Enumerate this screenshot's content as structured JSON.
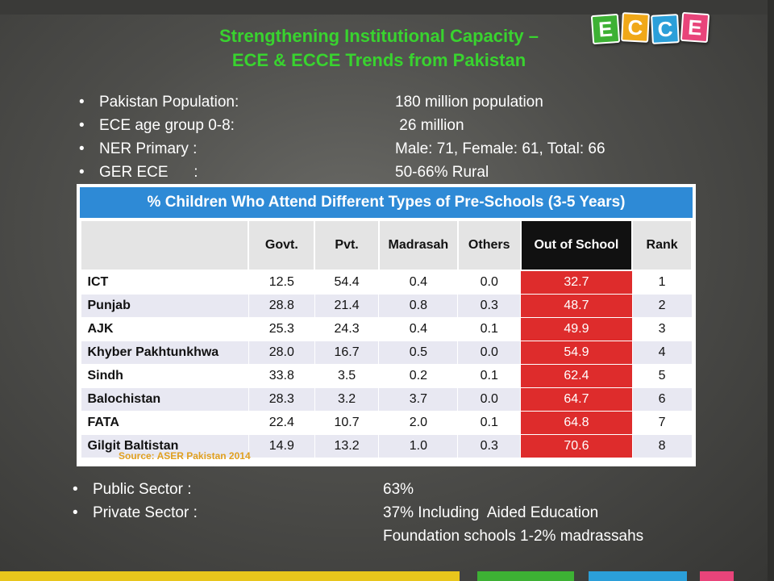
{
  "header": {
    "title_line1": "Strengthening Institutional Capacity –",
    "title_line2": "ECE & ECCE Trends from Pakistan",
    "logo_letters": [
      "E",
      "C",
      "C",
      "E"
    ],
    "logo_colors": [
      "#3db134",
      "#f0a818",
      "#2b9fd9",
      "#e8447a"
    ]
  },
  "stats": [
    {
      "label": "Pakistan Population:",
      "value": "180 million population"
    },
    {
      "label": "ECE age group 0-8:",
      "value": " 26 million"
    },
    {
      "label": "NER Primary :",
      "value": "Male: 71, Female: 61, Total: 66"
    },
    {
      "label": "GER ECE      :",
      "value": "50-66% Rural"
    }
  ],
  "table": {
    "title": "% Children Who Attend Different Types of Pre-Schools (3-5 Years)",
    "columns": [
      "",
      "Govt.",
      "Pvt.",
      "Madrasah",
      "Others",
      "Out of School",
      "Rank"
    ],
    "rows": [
      [
        "ICT",
        "12.5",
        "54.4",
        "0.4",
        "0.0",
        "32.7",
        "1"
      ],
      [
        "Punjab",
        "28.8",
        "21.4",
        "0.8",
        "0.3",
        "48.7",
        "2"
      ],
      [
        "AJK",
        "25.3",
        "24.3",
        "0.4",
        "0.1",
        "49.9",
        "3"
      ],
      [
        "Khyber Pakhtunkhwa",
        "28.0",
        "16.7",
        "0.5",
        "0.0",
        "54.9",
        "4"
      ],
      [
        "Sindh",
        "33.8",
        "3.5",
        "0.2",
        "0.1",
        "62.4",
        "5"
      ],
      [
        "Balochistan",
        "28.3",
        "3.2",
        "3.7",
        "0.0",
        "64.7",
        "6"
      ],
      [
        "FATA",
        "22.4",
        "10.7",
        "2.0",
        "0.1",
        "64.8",
        "7"
      ],
      [
        "Gilgit Baltistan",
        "14.9",
        "13.2",
        "1.0",
        "0.3",
        "70.6",
        "8"
      ]
    ],
    "source": "Source: ASER Pakistan 2014"
  },
  "sector": [
    {
      "label": "Public Sector :",
      "value": "63%"
    },
    {
      "label": "Private Sector :",
      "value": "37% Including  Aided Education"
    },
    {
      "label": "",
      "value": "Foundation schools 1-2% madrassahs"
    }
  ],
  "colors": {
    "title": "#39d32f",
    "table_header": "#2e8ad6",
    "out_of_school": "#de2c2c",
    "bottom_bar": [
      "#e8c61c",
      "#3db134",
      "#2b9fd9",
      "#e8447a"
    ]
  }
}
